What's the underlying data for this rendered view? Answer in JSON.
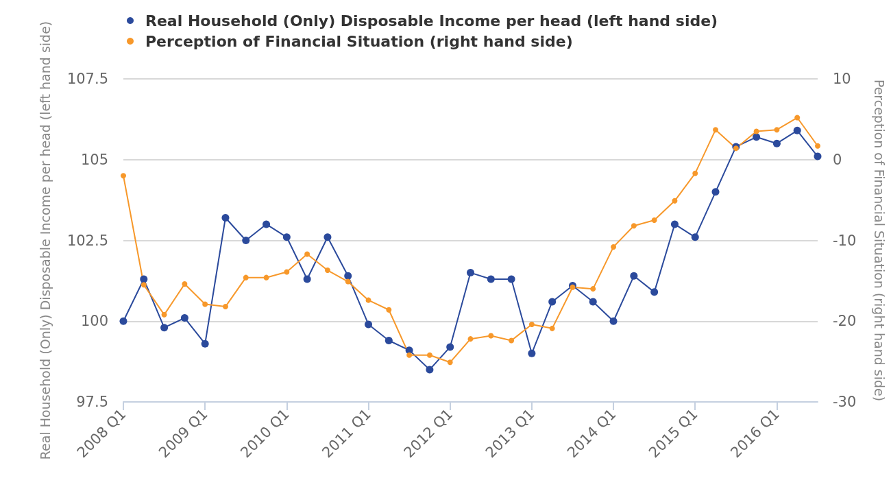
{
  "chart_data": {
    "type": "line",
    "ylabel": "Real Household (Only) Disposable Income per head (left hand side)",
    "y2label": "Perception of Financial Situation (right hand side)",
    "categories": [
      "2008 Q1",
      null,
      null,
      null,
      "2009 Q1",
      null,
      null,
      null,
      "2010 Q1",
      null,
      null,
      null,
      "2011 Q1",
      null,
      null,
      null,
      "2012 Q1",
      null,
      null,
      null,
      "2013 Q1",
      null,
      null,
      null,
      "2014 Q1",
      null,
      null,
      null,
      "2015 Q1",
      null,
      null,
      null,
      "2016 Q1",
      null,
      null
    ],
    "series": [
      {
        "name": "Real Household (Only) Disposable Income per head (left hand side)",
        "color": "#2b4a9c",
        "values": [
          100.0,
          101.3,
          99.8,
          100.1,
          99.3,
          103.2,
          102.5,
          103.0,
          102.6,
          101.3,
          102.6,
          101.4,
          99.9,
          99.4,
          99.1,
          98.5,
          99.2,
          101.5,
          101.3,
          101.3,
          99.0,
          100.6,
          101.1,
          100.6,
          100.0,
          101.4,
          100.9,
          103.0,
          102.6,
          104.0,
          105.4,
          105.7,
          105.5,
          105.9,
          105.1
        ]
      },
      {
        "name": "Perception of Financial Situation (right hand side)",
        "color": "#f7982a",
        "axis": "y2",
        "values": [
          -2,
          -15.5,
          -19.2,
          -15.4,
          -17.9,
          -18.2,
          -14.6,
          -14.6,
          -13.9,
          -11.7,
          -13.7,
          -15.1,
          -17.4,
          -18.6,
          -24.2,
          -24.2,
          -25.1,
          -22.2,
          -21.8,
          -22.4,
          -20.4,
          -20.9,
          -15.8,
          -16.0,
          -10.8,
          -8.2,
          -7.5,
          -5.1,
          -1.7,
          3.7,
          1.4,
          3.5,
          3.7,
          5.2,
          1.7
        ]
      }
    ],
    "ylim": [
      97.5,
      107.5
    ],
    "yticks": [
      97.5,
      100,
      102.5,
      105,
      107.5
    ],
    "y2lim": [
      -30,
      10
    ],
    "y2ticks": [
      -30,
      -20,
      -10,
      0,
      10
    ],
    "grid": "y",
    "legend": "top left",
    "marker": "circle",
    "line_style": "solid"
  }
}
